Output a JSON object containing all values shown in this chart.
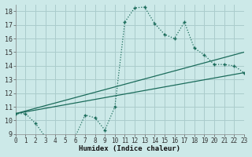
{
  "title": "",
  "xlabel": "Humidex (Indice chaleur)",
  "ylabel": "",
  "bg_color": "#cce9e8",
  "grid_color": "#aacccc",
  "line_color": "#1a6b5a",
  "xlim": [
    0,
    23
  ],
  "ylim": [
    9,
    18.5
  ],
  "xticks": [
    0,
    1,
    2,
    3,
    4,
    5,
    6,
    7,
    8,
    9,
    10,
    11,
    12,
    13,
    14,
    15,
    16,
    17,
    18,
    19,
    20,
    21,
    22,
    23
  ],
  "yticks": [
    9,
    10,
    11,
    12,
    13,
    14,
    15,
    16,
    17,
    18
  ],
  "series1_x": [
    0,
    1,
    2,
    3,
    4,
    5,
    6,
    7,
    8,
    9,
    10,
    11,
    12,
    13,
    14,
    15,
    16,
    17,
    18,
    19,
    20,
    21,
    22,
    23
  ],
  "series1_y": [
    10.5,
    10.5,
    9.8,
    8.8,
    8.7,
    8.7,
    8.8,
    10.4,
    10.2,
    9.3,
    11.0,
    17.2,
    18.25,
    18.3,
    17.1,
    16.3,
    16.0,
    17.2,
    15.3,
    14.8,
    14.1,
    14.1,
    14.0,
    13.5
  ],
  "series2_x": [
    0,
    23
  ],
  "series2_y": [
    10.5,
    13.5
  ],
  "series3_x": [
    0,
    23
  ],
  "series3_y": [
    10.5,
    15.0
  ]
}
